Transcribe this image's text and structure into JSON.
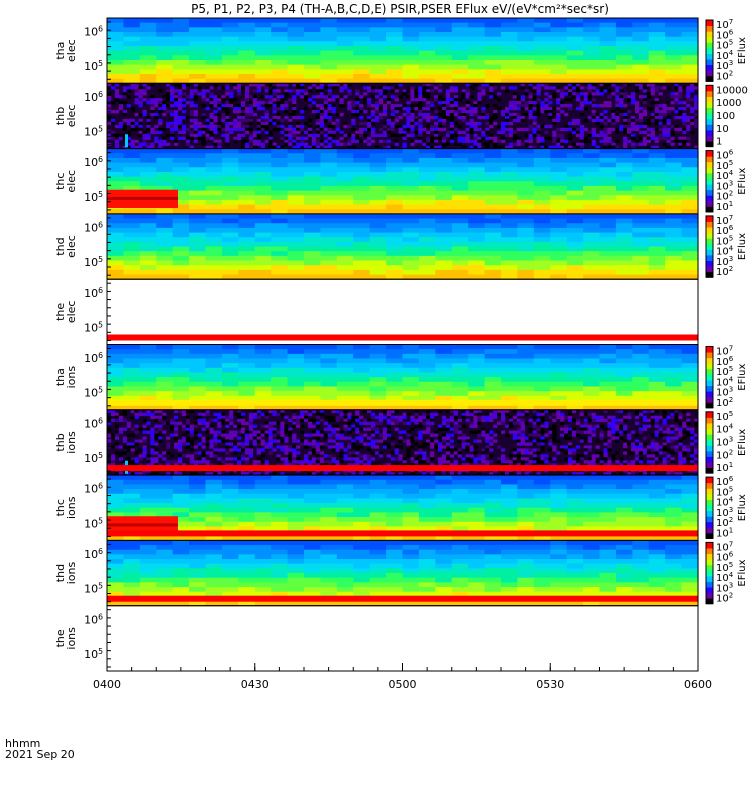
{
  "title": "P5, P1, P2, P3, P4 (TH-A,B,C,D,E) PSIR,PSER EFlux eV/(eV*cm²*sec*sr)",
  "footer": {
    "line1": "hhmm",
    "line2": "2021 Sep 20"
  },
  "chart_data": {
    "type": "heatmap",
    "x_axis": {
      "ticks": [
        "0400",
        "0430",
        "0500",
        "0530",
        "0600"
      ],
      "range": [
        "04:00",
        "06:00"
      ]
    },
    "panels": [
      {
        "label": [
          "tha",
          "elec"
        ],
        "y_ticks": [
          "10^6",
          "10^5"
        ],
        "style": "smooth",
        "colorbar": {
          "ticks": [
            "10^7",
            "10^6",
            "10^5",
            "10^4",
            "10^3",
            "10^2"
          ],
          "label": "EFlux"
        }
      },
      {
        "label": [
          "thb",
          "elec"
        ],
        "y_ticks": [
          "10^6",
          "10^5"
        ],
        "style": "noise",
        "colorbar": {
          "ticks": [
            "10000",
            "1000",
            "100",
            "10",
            "1"
          ],
          "label": ""
        }
      },
      {
        "label": [
          "thc",
          "elec"
        ],
        "y_ticks": [
          "10^6",
          "10^5"
        ],
        "style": "smooth-red",
        "colorbar": {
          "ticks": [
            "10^6",
            "10^5",
            "10^4",
            "10^3",
            "10^2",
            "10^1"
          ],
          "label": "EFlux"
        }
      },
      {
        "label": [
          "thd",
          "elec"
        ],
        "y_ticks": [
          "10^6",
          "10^5"
        ],
        "style": "smooth",
        "colorbar": {
          "ticks": [
            "10^7",
            "10^6",
            "10^5",
            "10^4",
            "10^3",
            "10^2"
          ],
          "label": "EFlux"
        }
      },
      {
        "label": [
          "the",
          "elec"
        ],
        "y_ticks": [
          "10^6",
          "10^5"
        ],
        "style": "empty",
        "colorbar": null
      },
      {
        "label": [
          "tha",
          "ions"
        ],
        "y_ticks": [
          "10^6",
          "10^5"
        ],
        "style": "smooth",
        "colorbar": {
          "ticks": [
            "10^7",
            "10^6",
            "10^5",
            "10^4",
            "10^3",
            "10^2"
          ],
          "label": "EFlux"
        }
      },
      {
        "label": [
          "thb",
          "ions"
        ],
        "y_ticks": [
          "10^6",
          "10^5"
        ],
        "style": "noise",
        "colorbar": {
          "ticks": [
            "10^5",
            "10^4",
            "10^3",
            "10^2",
            "10^1"
          ],
          "label": "EFlux"
        }
      },
      {
        "label": [
          "thc",
          "ions"
        ],
        "y_ticks": [
          "10^6",
          "10^5"
        ],
        "style": "smooth-red",
        "colorbar": {
          "ticks": [
            "10^6",
            "10^5",
            "10^4",
            "10^3",
            "10^2",
            "10^1"
          ],
          "label": "EFlux"
        }
      },
      {
        "label": [
          "thd",
          "ions"
        ],
        "y_ticks": [
          "10^6",
          "10^5"
        ],
        "style": "smooth",
        "colorbar": {
          "ticks": [
            "10^7",
            "10^6",
            "10^5",
            "10^4",
            "10^3",
            "10^2"
          ],
          "label": "EFlux"
        }
      },
      {
        "label": [
          "the",
          "ions"
        ],
        "y_ticks": [
          "10^6",
          "10^5"
        ],
        "style": "empty",
        "colorbar": null
      }
    ],
    "colors": [
      "#000000",
      "#6a00a8",
      "#2a00ff",
      "#0070ff",
      "#00c8ff",
      "#00ffb0",
      "#40ff40",
      "#c8ff00",
      "#ffd700",
      "#ff8000",
      "#ff0000"
    ]
  }
}
